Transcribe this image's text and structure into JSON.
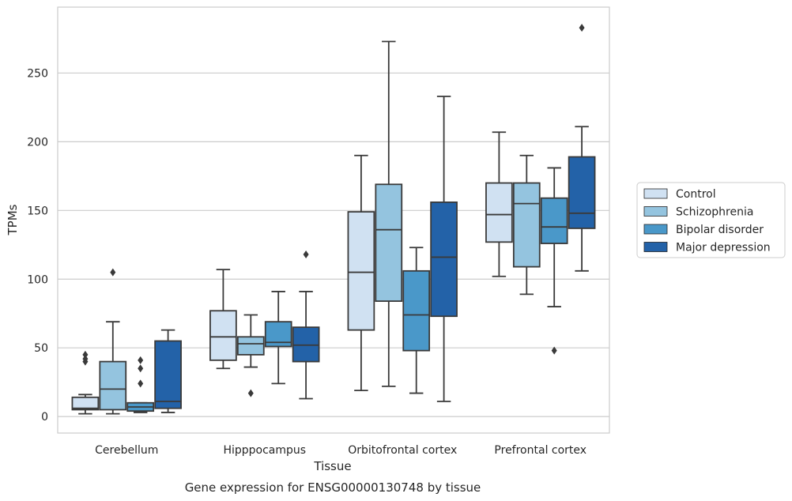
{
  "chart_data": {
    "type": "box",
    "title": "",
    "caption": "Gene expression for ENSG00000130748 by tissue",
    "xlabel": "Tissue",
    "ylabel": "TPMs",
    "ylim": [
      -12,
      298
    ],
    "yticks": [
      0,
      50,
      100,
      150,
      200,
      250
    ],
    "grid": "horizontal",
    "legend_position": "right",
    "categories": [
      "Cerebellum",
      "Hipppocampus",
      "Orbitofrontal cortex",
      "Prefrontal cortex"
    ],
    "series": [
      {
        "name": "Control",
        "color": "#d0e1f2",
        "boxes": [
          {
            "whisker_low": 2,
            "q1": 5,
            "median": 6,
            "q3": 14,
            "whisker_high": 16,
            "outliers": [
              40,
              42,
              45
            ]
          },
          {
            "whisker_low": 35,
            "q1": 41,
            "median": 58,
            "q3": 77,
            "whisker_high": 107,
            "outliers": []
          },
          {
            "whisker_low": 19,
            "q1": 63,
            "median": 105,
            "q3": 149,
            "whisker_high": 190,
            "outliers": []
          },
          {
            "whisker_low": 102,
            "q1": 127,
            "median": 147,
            "q3": 170,
            "whisker_high": 207,
            "outliers": []
          }
        ]
      },
      {
        "name": "Schizophrenia",
        "color": "#94c4df",
        "boxes": [
          {
            "whisker_low": 2,
            "q1": 5,
            "median": 20,
            "q3": 40,
            "whisker_high": 69,
            "outliers": [
              105
            ]
          },
          {
            "whisker_low": 36,
            "q1": 45,
            "median": 53,
            "q3": 58,
            "whisker_high": 74,
            "outliers": [
              17
            ]
          },
          {
            "whisker_low": 22,
            "q1": 84,
            "median": 136,
            "q3": 169,
            "whisker_high": 273,
            "outliers": []
          },
          {
            "whisker_low": 89,
            "q1": 109,
            "median": 155,
            "q3": 170,
            "whisker_high": 190,
            "outliers": []
          }
        ]
      },
      {
        "name": "Bipolar disorder",
        "color": "#4a98c9",
        "boxes": [
          {
            "whisker_low": 3,
            "q1": 4,
            "median": 7,
            "q3": 10,
            "whisker_high": 10,
            "outliers": [
              24,
              35,
              41
            ]
          },
          {
            "whisker_low": 24,
            "q1": 51,
            "median": 54,
            "q3": 69,
            "whisker_high": 91,
            "outliers": []
          },
          {
            "whisker_low": 17,
            "q1": 48,
            "median": 74,
            "q3": 106,
            "whisker_high": 123,
            "outliers": []
          },
          {
            "whisker_low": 80,
            "q1": 126,
            "median": 138,
            "q3": 159,
            "whisker_high": 181,
            "outliers": [
              48
            ]
          }
        ]
      },
      {
        "name": "Major depression",
        "color": "#2362a8",
        "boxes": [
          {
            "whisker_low": 3,
            "q1": 6,
            "median": 11,
            "q3": 55,
            "whisker_high": 63,
            "outliers": []
          },
          {
            "whisker_low": 13,
            "q1": 40,
            "median": 52,
            "q3": 65,
            "whisker_high": 91,
            "outliers": [
              118
            ]
          },
          {
            "whisker_low": 11,
            "q1": 73,
            "median": 116,
            "q3": 156,
            "whisker_high": 233,
            "outliers": []
          },
          {
            "whisker_low": 106,
            "q1": 137,
            "median": 148,
            "q3": 189,
            "whisker_high": 211,
            "outliers": [
              283
            ]
          }
        ]
      }
    ]
  }
}
